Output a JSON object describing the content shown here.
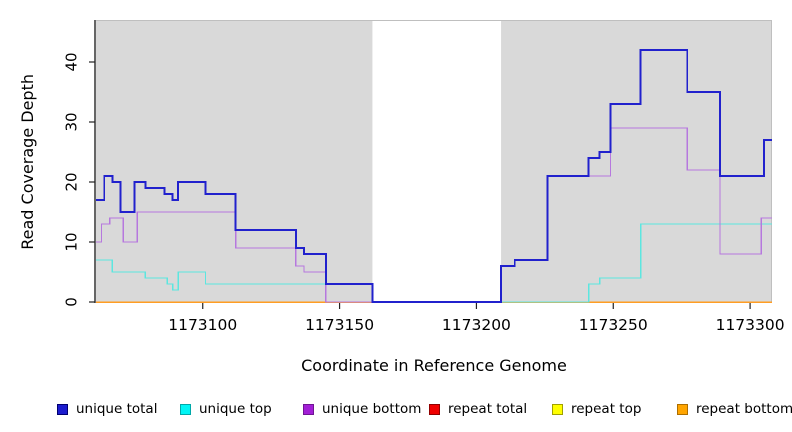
{
  "chart_data": {
    "type": "line",
    "step": true,
    "title": "",
    "xlabel": "Coordinate in Reference Genome",
    "ylabel": "Read Coverage Depth",
    "xlim": [
      1173061,
      1173308
    ],
    "ylim": [
      0,
      47
    ],
    "x_ticks": [
      1173100,
      1173150,
      1173200,
      1173250,
      1173300
    ],
    "y_ticks": [
      0,
      10,
      20,
      30,
      40
    ],
    "grid": false,
    "plot_background": "#d9d9d9",
    "plot_border_color": "#bfbfbf",
    "masked_region": {
      "x_start": 1173162,
      "x_end": 1173209,
      "color": "#ffffff"
    },
    "series": [
      {
        "name": "repeat total",
        "color": "#DD2222",
        "width": 1.2,
        "points": [
          [
            1173061,
            0
          ],
          [
            1173308,
            0
          ]
        ]
      },
      {
        "name": "repeat top",
        "color": "#F2E21E",
        "width": 1.2,
        "points": [
          [
            1173061,
            0
          ],
          [
            1173308,
            0
          ]
        ]
      },
      {
        "name": "repeat bottom",
        "color": "#FF9D23",
        "width": 1.5,
        "points": [
          [
            1173061,
            0
          ],
          [
            1173308,
            0
          ]
        ]
      },
      {
        "name": "unique top",
        "color": "#5CE6E0",
        "width": 1.4,
        "points": [
          [
            1173061,
            7
          ],
          [
            1173067,
            5
          ],
          [
            1173079,
            4
          ],
          [
            1173087,
            3
          ],
          [
            1173089,
            2
          ],
          [
            1173091,
            5
          ],
          [
            1173101,
            3
          ],
          [
            1173162,
            0
          ],
          [
            1173241,
            3
          ],
          [
            1173245,
            4
          ],
          [
            1173260,
            13
          ],
          [
            1173308,
            13
          ]
        ]
      },
      {
        "name": "unique bottom",
        "color": "#B678DE",
        "width": 1.4,
        "points": [
          [
            1173061,
            10
          ],
          [
            1173063,
            13
          ],
          [
            1173066,
            14
          ],
          [
            1173071,
            10
          ],
          [
            1173076,
            15
          ],
          [
            1173112,
            9
          ],
          [
            1173134,
            6
          ],
          [
            1173137,
            5
          ],
          [
            1173145,
            0
          ],
          [
            1173209,
            6
          ],
          [
            1173214,
            7
          ],
          [
            1173226,
            21
          ],
          [
            1173249,
            29
          ],
          [
            1173277,
            22
          ],
          [
            1173289,
            8
          ],
          [
            1173304,
            14
          ],
          [
            1173308,
            14
          ]
        ]
      },
      {
        "name": "unique total",
        "color": "#2121CD",
        "width": 1.9,
        "points": [
          [
            1173061,
            17
          ],
          [
            1173064,
            21
          ],
          [
            1173067,
            20
          ],
          [
            1173070,
            15
          ],
          [
            1173075,
            20
          ],
          [
            1173079,
            19
          ],
          [
            1173086,
            18
          ],
          [
            1173089,
            17
          ],
          [
            1173091,
            20
          ],
          [
            1173101,
            18
          ],
          [
            1173112,
            12
          ],
          [
            1173134,
            9
          ],
          [
            1173137,
            8
          ],
          [
            1173145,
            3
          ],
          [
            1173162,
            0
          ],
          [
            1173209,
            6
          ],
          [
            1173214,
            7
          ],
          [
            1173226,
            21
          ],
          [
            1173241,
            24
          ],
          [
            1173245,
            25
          ],
          [
            1173249,
            33
          ],
          [
            1173260,
            42
          ],
          [
            1173277,
            35
          ],
          [
            1173289,
            21
          ],
          [
            1173305,
            27
          ],
          [
            1173308,
            27
          ]
        ]
      }
    ],
    "legend": [
      {
        "label": "unique total",
        "fill": "#1C1CCE",
        "border": "#000070"
      },
      {
        "label": "unique top",
        "fill": "#00F5F5",
        "border": "#00A8A8"
      },
      {
        "label": "unique bottom",
        "fill": "#A21ED6",
        "border": "#701593"
      },
      {
        "label": "repeat total",
        "fill": "#F00000",
        "border": "#900000"
      },
      {
        "label": "repeat top",
        "fill": "#FFFF00",
        "border": "#A0A000"
      },
      {
        "label": "repeat bottom",
        "fill": "#FFA500",
        "border": "#AD6E00"
      }
    ]
  }
}
